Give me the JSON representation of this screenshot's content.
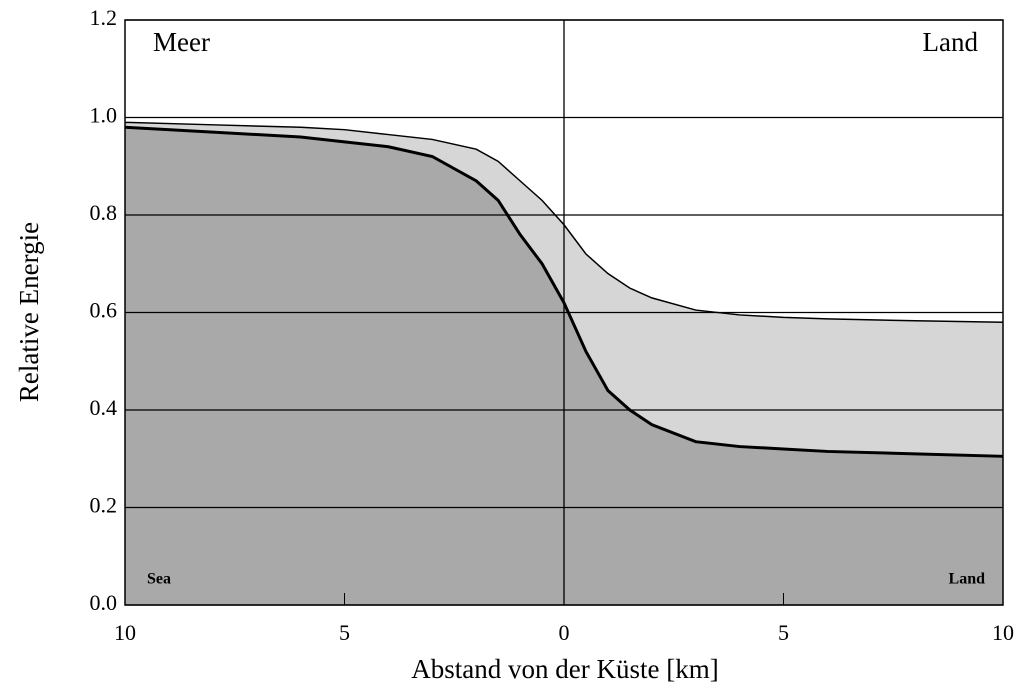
{
  "chart_data": {
    "type": "area",
    "xlabel": "Abstand von der Küste [km]",
    "ylabel": "Relative Energie",
    "annotations": [
      "Meer",
      "Land",
      "Sea",
      "Land"
    ],
    "x": [
      -10,
      -8,
      -6,
      -5,
      -4,
      -3,
      -2,
      -1.5,
      -1,
      -0.5,
      0,
      0.5,
      1,
      1.5,
      2,
      3,
      4,
      5,
      6,
      8,
      10
    ],
    "series": [
      {
        "color": "#d6d6d6",
        "values": [
          0.99,
          0.985,
          0.98,
          0.975,
          0.965,
          0.955,
          0.935,
          0.91,
          0.87,
          0.83,
          0.78,
          0.72,
          0.68,
          0.65,
          0.63,
          0.605,
          0.595,
          0.59,
          0.587,
          0.583,
          0.58
        ]
      },
      {
        "color": "#a9a9a9",
        "values": [
          0.98,
          0.97,
          0.96,
          0.95,
          0.94,
          0.92,
          0.87,
          0.83,
          0.76,
          0.7,
          0.62,
          0.52,
          0.44,
          0.4,
          0.37,
          0.335,
          0.325,
          0.32,
          0.315,
          0.31,
          0.305
        ]
      }
    ],
    "xlim": [
      -10,
      10
    ],
    "xticks": [
      {
        "value": -10,
        "label": "10"
      },
      {
        "value": -5,
        "label": "5"
      },
      0,
      5,
      10
    ],
    "ylim": [
      0,
      1.2
    ],
    "yticks": [
      {
        "value": 0,
        "label": "0.0"
      },
      0.2,
      0.4,
      0.6,
      0.8,
      {
        "value": 1,
        "label": "1.0"
      },
      1.2
    ],
    "grid": true
  }
}
